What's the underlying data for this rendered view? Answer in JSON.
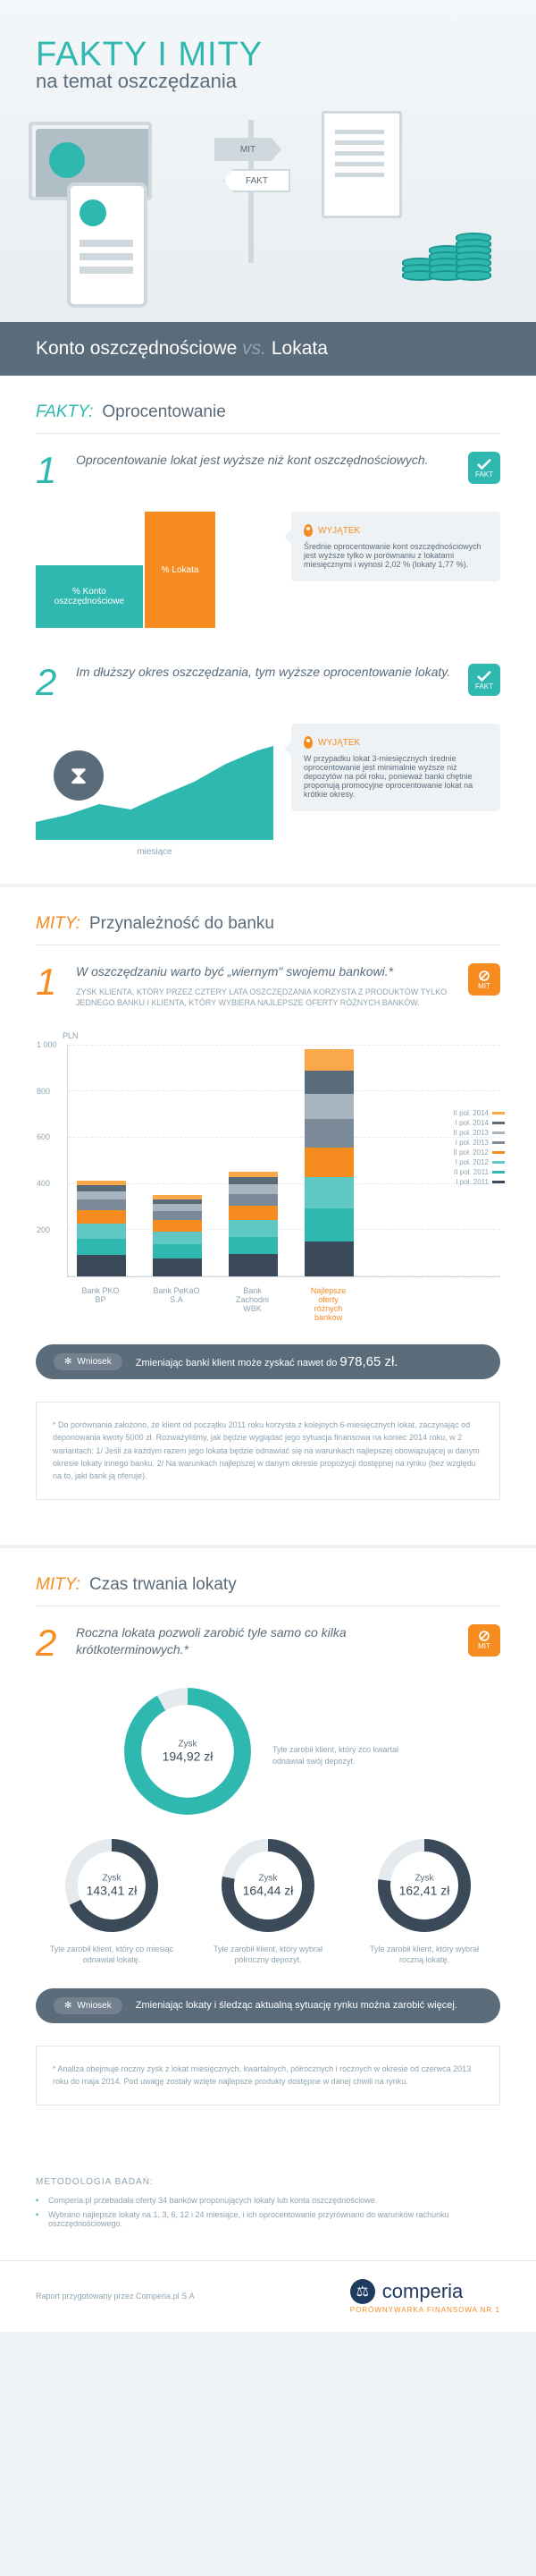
{
  "header": {
    "title": "FAKTY I MITY",
    "subtitle": "na temat oszczędzania",
    "sign_mit": "MIT",
    "sign_fakt": "FAKT"
  },
  "vs": {
    "a": "Konto oszczędnościowe",
    "vs": "vs.",
    "b": "Lokata"
  },
  "section_fakty": {
    "label": "FAKTY:",
    "title": "Oprocentowanie"
  },
  "fact1": {
    "num": "1",
    "text": "Oprocentowanie lokat jest wyższe\nniż kont oszczędnościowych.",
    "badge": "FAKT",
    "bar_lokata": "%\nLokata",
    "bar_konto": "%\nKonto\noszczędnościowe",
    "callout_title": "WYJĄTEK",
    "callout_text": "Średnie oprocentowanie kont oszczędnościowych jest wyższe tylko w porównaniu z lokatami miesięcznymi i wynosi 2,02 % (lokaty 1,77 %).",
    "bar_colors": {
      "konto": "#2eb8b0",
      "lokata": "#f68b1f"
    }
  },
  "fact2": {
    "num": "2",
    "text": "Im dłuższy okres oszczędzania,\ntym wyższe oprocentowanie lokaty.",
    "badge": "FAKT",
    "axis": "miesiące",
    "callout_title": "WYJĄTEK",
    "callout_text": "W przypadku lokat 3-miesięcznych średnie oprocentowanie jest minimalnie wyższe niż depozytów na pół roku, ponieważ banki chętnie proponują promocyjne oprocentowanie lokat na krótkie okresy.",
    "area_color": "#2eb8b0"
  },
  "section_mity1": {
    "label": "MITY:",
    "title": "Przynależność do banku"
  },
  "mit1": {
    "num": "1",
    "text": "W oszczędzaniu warto być „wiernym\" swojemu bankowi.*",
    "sub": "ZYSK KLIENTA, KTÓRY PRZEZ CZTERY LATA OSZCZĘDZANIA KORZYSTA Z PRODUKTÓW TYLKO JEDNEGO BANKU I KLIENTA, KTÓRY WYBIERA NAJLEPSZE OFERTY RÓŻNYCH BANKÓW.",
    "badge": "MIT",
    "ylabel": "PLN",
    "ymax": 1000,
    "yticks": [
      "200",
      "400",
      "600",
      "800",
      "1 000"
    ],
    "periods": [
      {
        "label": "I poł. 2011",
        "color": "#3a4a58"
      },
      {
        "label": "II poł. 2011",
        "color": "#2eb8b0"
      },
      {
        "label": "I poł. 2012",
        "color": "#5fc8c3"
      },
      {
        "label": "II poł. 2012",
        "color": "#f68b1f"
      },
      {
        "label": "I poł. 2013",
        "color": "#7a8a98"
      },
      {
        "label": "II poł. 2013",
        "color": "#a8b5bf"
      },
      {
        "label": "I poł. 2014",
        "color": "#5a6b7a"
      },
      {
        "label": "II poł. 2014",
        "color": "#faa94a"
      }
    ],
    "banks": [
      {
        "name": "Bank\nPKO BP",
        "vals": [
          90,
          70,
          65,
          60,
          45,
          35,
          25,
          20
        ]
      },
      {
        "name": "Bank\nPeKaO S.A",
        "vals": [
          78,
          58,
          55,
          50,
          38,
          30,
          22,
          18
        ]
      },
      {
        "name": "Bank\nZachodni\nWBK",
        "vals": [
          95,
          75,
          70,
          65,
          50,
          40,
          30,
          25
        ]
      },
      {
        "name": "Najlepsze oferty różnych banków",
        "vals": [
          150,
          140,
          135,
          130,
          120,
          110,
          100,
          90
        ],
        "best": true
      }
    ],
    "wniosek_label": "Wniosek",
    "wniosek_text": "Zmieniając banki klient może zyskać nawet do",
    "wniosek_amount": "978,65 zł.",
    "note": "* Do porównania założono, że klient od początku 2011 roku korzysta z kolejnych 6-miesięcznych lokat, zaczynając od deponowania kwoty 5000 zł. Rozważyliśmy, jak będzie wyglądać jego sytuacja finansowa na koniec 2014 roku, w 2 wariantach:\n1/ Jeśli za każdym razem jego lokata będzie odnawiać się na warunkach najlepszej obowiązującej w danym okresie lokaty innego banku.\n2/ Na warunkach najlepszej w danym okresie propozycji dostępnej na rynku (bez względu na to, jaki bank ją oferuje)."
  },
  "section_mity2": {
    "label": "MITY:",
    "title": "Czas trwania lokaty"
  },
  "mit2": {
    "num": "2",
    "text": "Roczna lokata pozwoli zarobić tyle samo\nco kilka krótkoterminowych.*",
    "badge": "MIT",
    "big": {
      "label": "Zysk",
      "value": "194,92 zł",
      "caption": "Tyle zarobił klient, który zco kwartał odnawiał swój depozyt.",
      "pct": 92,
      "color": "#2eb8b0"
    },
    "small": [
      {
        "label": "Zysk",
        "value": "143,41 zł",
        "caption": "Tyle zarobił klient, który co miesiąc odnawiał lokatę.",
        "pct": 68,
        "color": "#3a4a58"
      },
      {
        "label": "Zysk",
        "value": "164,44 zł",
        "caption": "Tyle zarobił klient, który wybrał półroczny depozyt.",
        "pct": 78,
        "color": "#3a4a58"
      },
      {
        "label": "Zysk",
        "value": "162,41 zł",
        "caption": "Tyle zarobił klient, który wybrał roczną lokatę.",
        "pct": 77,
        "color": "#3a4a58"
      }
    ],
    "wniosek_label": "Wniosek",
    "wniosek_text": "Zmieniając lokaty i śledząc aktualną sytuację rynku można zarobić więcej.",
    "note": "* Analiza obejmuje roczny zysk z lokat miesięcznych, kwartalnych, półrocznych i rocznych w okresie od czerwca 2013 roku do maja 2014. Pod uwagę zostały wzięte najlepsze produkty dostępne w danej chwili na rynku."
  },
  "footer": {
    "meth": "METODOLOGIA BADAŃ:",
    "bullets": [
      "Comperia.pl przebadała oferty 34 banków proponujących lokaty lub konta oszczędnościowe.",
      "Wybrano najlepsze lokaty na 1, 3, 6, 12 i 24 miesiące, i ich oprocentowanie przyrównano do warunków rachunku oszczędnościowego."
    ],
    "report": "Raport przygotowany przez Comperia.pl S.A",
    "brand": "comperia",
    "brand_tag": "PORÓWNYWARKA FINANSOWA NR 1"
  },
  "colors": {
    "teal": "#2eb8b0",
    "orange": "#f68b1f",
    "slate": "#5a6b7a",
    "bg": "#eef2f5"
  }
}
